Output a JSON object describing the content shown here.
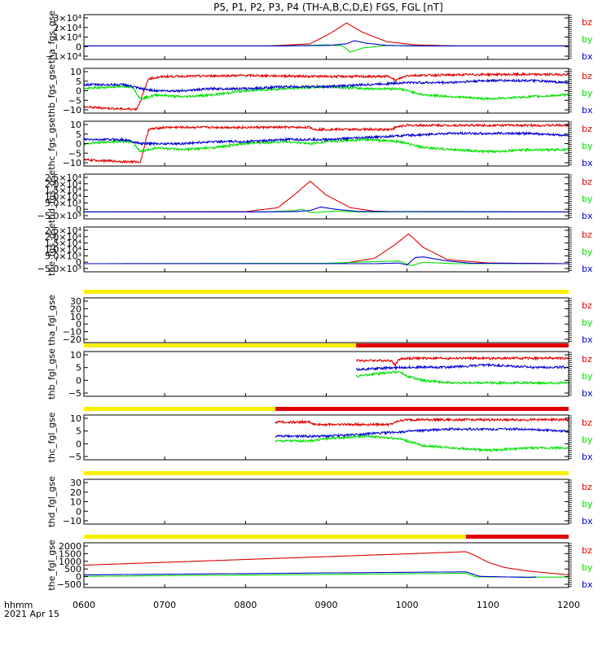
{
  "title": "P5, P1, P2, P3, P4 (TH-A,B,C,D,E) FGS, FGL [nT]",
  "footer": {
    "xunit": "hhmm",
    "date": "2021 Apr 15"
  },
  "colors": {
    "bz": "#e00000",
    "by": "#00e000",
    "bx": "#0000d0",
    "bar_yellow": "#f8f000",
    "bar_red": "#e00000"
  },
  "x_axis": {
    "ticks": [
      600,
      700,
      800,
      900,
      1000,
      1100,
      1200
    ],
    "labels": [
      "0600",
      "0700",
      "0800",
      "0900",
      "1000",
      "1100",
      "1200"
    ]
  },
  "chart_data": [
    {
      "type": "line",
      "ylabel": "tha_fgs_gse",
      "ylim": [
        -13000,
        30000
      ],
      "ticks": [
        "3×10⁴",
        "2×10⁴",
        "1×10⁴",
        "0",
        "−1×10⁴"
      ],
      "legend": [
        "bz",
        "by",
        "bx"
      ],
      "series": [
        {
          "name": "bz",
          "x": [
            600,
            830,
            880,
            905,
            925,
            945,
            975,
            1010,
            1060,
            1200
          ],
          "values": [
            0,
            0,
            2000,
            12000,
            22000,
            13000,
            4000,
            1000,
            0,
            0
          ]
        },
        {
          "name": "by",
          "x": [
            600,
            850,
            900,
            920,
            930,
            945,
            975,
            1010,
            1200
          ],
          "values": [
            0,
            0,
            1000,
            0,
            -6000,
            -2000,
            300,
            0,
            0
          ]
        },
        {
          "name": "bx",
          "x": [
            600,
            850,
            905,
            925,
            935,
            950,
            975,
            1010,
            1200
          ],
          "values": [
            0,
            0,
            500,
            2000,
            5000,
            2500,
            500,
            0,
            0
          ]
        }
      ]
    },
    {
      "type": "line",
      "ylabel": "thb_fgs_gse",
      "ylim": [
        -10,
        12
      ],
      "ticks": [
        "10",
        "5",
        "0",
        "−5",
        "−10"
      ],
      "legend": [
        "bz",
        "by",
        "bx"
      ],
      "series": [
        {
          "name": "bz",
          "x": [
            600,
            650,
            665,
            670,
            680,
            700,
            800,
            900,
            980,
            985,
            1000,
            1100,
            1200
          ],
          "values": [
            -7,
            -8,
            -8,
            -4,
            7,
            8,
            8.5,
            8,
            8,
            6,
            8.5,
            9,
            9
          ]
        },
        {
          "name": "by",
          "x": [
            600,
            640,
            660,
            670,
            690,
            720,
            760,
            800,
            850,
            900,
            950,
            990,
            1020,
            1060,
            1100,
            1150,
            1200
          ],
          "values": [
            2,
            3,
            3,
            -3,
            -1,
            -2,
            -1,
            1,
            2,
            3,
            2,
            2,
            -1,
            -2,
            -3,
            -2,
            -1
          ]
        },
        {
          "name": "bx",
          "x": [
            600,
            650,
            670,
            690,
            720,
            760,
            800,
            850,
            900,
            950,
            1000,
            1050,
            1100,
            1150,
            1200
          ],
          "values": [
            4,
            4,
            2,
            1,
            1,
            2,
            2,
            3,
            3,
            4,
            5,
            5,
            6,
            6,
            5
          ]
        }
      ]
    },
    {
      "type": "line",
      "ylabel": "thc_fgs_gse",
      "ylim": [
        -10,
        12
      ],
      "ticks": [
        "10",
        "5",
        "0",
        "−5",
        "−10"
      ],
      "legend": [
        "bz",
        "by",
        "bx"
      ],
      "series": [
        {
          "name": "bz",
          "x": [
            600,
            660,
            670,
            680,
            700,
            800,
            880,
            885,
            980,
            990,
            1000,
            1100,
            1200
          ],
          "values": [
            -7,
            -8,
            -8,
            8,
            9,
            9,
            9,
            8,
            8,
            9.5,
            10,
            10,
            10
          ]
        },
        {
          "name": "by",
          "x": [
            600,
            640,
            660,
            670,
            690,
            720,
            760,
            800,
            850,
            880,
            900,
            950,
            990,
            1020,
            1060,
            1100,
            1150,
            1200
          ],
          "values": [
            1,
            2,
            2,
            -3,
            -1,
            -2,
            -1,
            1,
            2,
            1,
            2,
            3,
            2,
            -1,
            -2,
            -3,
            -2,
            -2
          ]
        },
        {
          "name": "bx",
          "x": [
            600,
            650,
            670,
            690,
            720,
            760,
            800,
            850,
            900,
            950,
            1000,
            1050,
            1100,
            1150,
            1200
          ],
          "values": [
            3,
            3,
            1,
            1,
            1,
            2,
            2,
            3,
            3,
            4,
            5,
            6,
            6,
            6,
            5
          ]
        }
      ]
    },
    {
      "type": "line",
      "ylabel": "thd_fgs_gse",
      "ylim": [
        -5000,
        27000
      ],
      "ticks": [
        "2.5×10⁴",
        "2.0×10⁴",
        "1.5×10⁴",
        "1.0×10⁴",
        "5.0×10³",
        "0",
        "−5.0×10³"
      ],
      "legend": [
        "bz",
        "by",
        "bx"
      ],
      "series": [
        {
          "name": "bz",
          "x": [
            600,
            800,
            840,
            860,
            880,
            900,
            930,
            960,
            1000,
            1200
          ],
          "values": [
            0,
            200,
            3000,
            12000,
            22000,
            12000,
            3000,
            500,
            0,
            0
          ]
        },
        {
          "name": "by",
          "x": [
            600,
            820,
            860,
            870,
            880,
            890,
            910,
            940,
            1200
          ],
          "values": [
            0,
            0,
            800,
            2000,
            -500,
            -300,
            600,
            0,
            0
          ]
        },
        {
          "name": "bx",
          "x": [
            600,
            820,
            860,
            880,
            893,
            910,
            940,
            1200
          ],
          "values": [
            0,
            0,
            200,
            1000,
            3500,
            2000,
            300,
            0
          ]
        }
      ]
    },
    {
      "type": "line",
      "ylabel": "the_fgs_gse",
      "ylim": [
        -6000,
        27000
      ],
      "ticks": [
        "2.5×10⁴",
        "2.0×10⁴",
        "1.5×10⁴",
        "1.0×10⁴",
        "5.0×10³",
        "0",
        "−5.0×10³"
      ],
      "legend": [
        "bz",
        "by",
        "bx"
      ],
      "series": [
        {
          "name": "bz",
          "x": [
            600,
            920,
            960,
            985,
            1002,
            1020,
            1050,
            1100,
            1200
          ],
          "values": [
            0,
            200,
            4000,
            14000,
            22000,
            12000,
            3000,
            500,
            0
          ]
        },
        {
          "name": "by",
          "x": [
            600,
            900,
            960,
            990,
            1005,
            1020,
            1060,
            1200
          ],
          "values": [
            0,
            300,
            1500,
            2000,
            -1500,
            1000,
            0,
            0
          ]
        },
        {
          "name": "bx",
          "x": [
            600,
            960,
            990,
            1000,
            1010,
            1020,
            1050,
            1080,
            1200
          ],
          "values": [
            0,
            0,
            500,
            -1000,
            4500,
            5000,
            2000,
            300,
            0
          ]
        }
      ]
    },
    {
      "type": "line",
      "ylabel": "tha_fgl_gse",
      "ylim": [
        -25,
        35
      ],
      "ticks": [
        "30",
        "20",
        "10",
        "0",
        "−10",
        "−20"
      ],
      "legend": [
        "bz",
        "by",
        "bx"
      ],
      "status_bar": [
        {
          "from": 600,
          "to": 1200,
          "color": "yellow"
        }
      ],
      "series": []
    },
    {
      "type": "line",
      "ylabel": "thb_fgl_gse",
      "ylim": [
        -8,
        12
      ],
      "ticks": [
        "10",
        "5",
        "0",
        "−5"
      ],
      "legend": [
        "bz",
        "by",
        "bx"
      ],
      "status_bar": [
        {
          "from": 600,
          "to": 937,
          "color": "yellow"
        },
        {
          "from": 937,
          "to": 1200,
          "color": "red"
        }
      ],
      "series": [
        {
          "name": "bz",
          "x": [
            937,
            980,
            985,
            990,
            1000,
            1100,
            1200
          ],
          "values": [
            8,
            8,
            6,
            8.5,
            9,
            9,
            9
          ]
        },
        {
          "name": "by",
          "x": [
            937,
            960,
            990,
            1000,
            1020,
            1060,
            1100,
            1150,
            1200
          ],
          "values": [
            1,
            2,
            3,
            1,
            -1,
            -2,
            -2,
            -2,
            -2
          ]
        },
        {
          "name": "bx",
          "x": [
            937,
            1000,
            1050,
            1100,
            1150,
            1200
          ],
          "values": [
            4,
            5,
            5,
            6,
            5,
            5
          ]
        }
      ]
    },
    {
      "type": "line",
      "ylabel": "thc_fgl_gse",
      "ylim": [
        -7,
        12
      ],
      "ticks": [
        "10",
        "5",
        "0",
        "−5"
      ],
      "legend": [
        "bz",
        "by",
        "bx"
      ],
      "status_bar": [
        {
          "from": 600,
          "to": 837,
          "color": "yellow"
        },
        {
          "from": 837,
          "to": 1200,
          "color": "red"
        }
      ],
      "series": [
        {
          "name": "bz",
          "x": [
            837,
            880,
            885,
            980,
            990,
            1000,
            1100,
            1200
          ],
          "values": [
            9,
            9,
            8,
            8,
            9.5,
            10,
            10,
            10
          ]
        },
        {
          "name": "by",
          "x": [
            837,
            880,
            900,
            950,
            990,
            1020,
            1060,
            1100,
            1150,
            1200
          ],
          "values": [
            1,
            1,
            2,
            3,
            2,
            -1,
            -2,
            -3,
            -2,
            -2
          ]
        },
        {
          "name": "bx",
          "x": [
            837,
            900,
            950,
            1000,
            1050,
            1100,
            1150,
            1200
          ],
          "values": [
            3,
            3,
            4,
            5,
            6,
            6,
            6,
            5
          ]
        }
      ]
    },
    {
      "type": "line",
      "ylabel": "thd_fgl_gse",
      "ylim": [
        -15,
        35
      ],
      "ticks": [
        "30",
        "20",
        "10",
        "0",
        "−10"
      ],
      "legend": [
        "bz",
        "by",
        "bx"
      ],
      "status_bar": [
        {
          "from": 600,
          "to": 1200,
          "color": "yellow"
        }
      ],
      "series": []
    },
    {
      "type": "line",
      "ylabel": "the_fgl_gse",
      "ylim": [
        -700,
        2300
      ],
      "ticks": [
        "2000",
        "1500",
        "1000",
        "500",
        "0",
        "−500"
      ],
      "legend": [
        "bz",
        "by",
        "bx"
      ],
      "status_bar": [
        {
          "from": 600,
          "to": 1073,
          "color": "yellow"
        },
        {
          "from": 1073,
          "to": 1200,
          "color": "red"
        }
      ],
      "series": [
        {
          "name": "bz",
          "x": [
            600,
            1073,
            1080,
            1100,
            1120,
            1150,
            1200
          ],
          "values": [
            800,
            1700,
            1550,
            1000,
            650,
            400,
            150
          ]
        },
        {
          "name": "by",
          "x": [
            600,
            1073,
            1085,
            1150,
            1200
          ],
          "values": [
            50,
            250,
            20,
            0,
            0
          ]
        },
        {
          "name": "bx",
          "x": [
            600,
            1073,
            1090,
            1150,
            1160
          ],
          "values": [
            150,
            350,
            50,
            -20,
            0
          ]
        }
      ]
    }
  ]
}
